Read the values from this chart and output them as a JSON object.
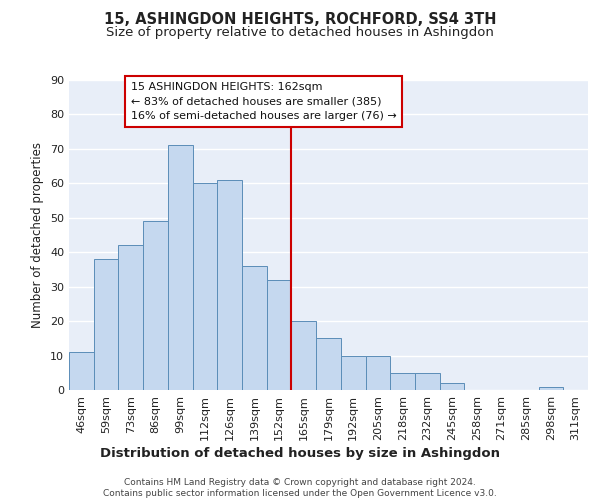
{
  "title": "15, ASHINGDON HEIGHTS, ROCHFORD, SS4 3TH",
  "subtitle": "Size of property relative to detached houses in Ashingdon",
  "xlabel": "Distribution of detached houses by size in Ashingdon",
  "ylabel": "Number of detached properties",
  "bar_labels": [
    "46sqm",
    "59sqm",
    "73sqm",
    "86sqm",
    "99sqm",
    "112sqm",
    "126sqm",
    "139sqm",
    "152sqm",
    "165sqm",
    "179sqm",
    "192sqm",
    "205sqm",
    "218sqm",
    "232sqm",
    "245sqm",
    "258sqm",
    "271sqm",
    "285sqm",
    "298sqm",
    "311sqm"
  ],
  "bar_values": [
    11,
    38,
    42,
    49,
    71,
    60,
    61,
    36,
    32,
    20,
    15,
    10,
    10,
    5,
    5,
    2,
    0,
    0,
    0,
    1,
    0
  ],
  "bar_color": "#c5d8ef",
  "bar_edge_color": "#5b8db8",
  "background_color": "#e8eef8",
  "grid_color": "#ffffff",
  "vline_x_idx": 9,
  "vline_color": "#cc0000",
  "annotation_text": "15 ASHINGDON HEIGHTS: 162sqm\n← 83% of detached houses are smaller (385)\n16% of semi-detached houses are larger (76) →",
  "annotation_box_facecolor": "#ffffff",
  "annotation_box_edgecolor": "#cc0000",
  "ylim": [
    0,
    90
  ],
  "yticks": [
    0,
    10,
    20,
    30,
    40,
    50,
    60,
    70,
    80,
    90
  ],
  "footer_text": "Contains HM Land Registry data © Crown copyright and database right 2024.\nContains public sector information licensed under the Open Government Licence v3.0.",
  "title_fontsize": 10.5,
  "subtitle_fontsize": 9.5,
  "xlabel_fontsize": 9.5,
  "ylabel_fontsize": 8.5,
  "tick_fontsize": 8,
  "annotation_fontsize": 8,
  "footer_fontsize": 6.5
}
